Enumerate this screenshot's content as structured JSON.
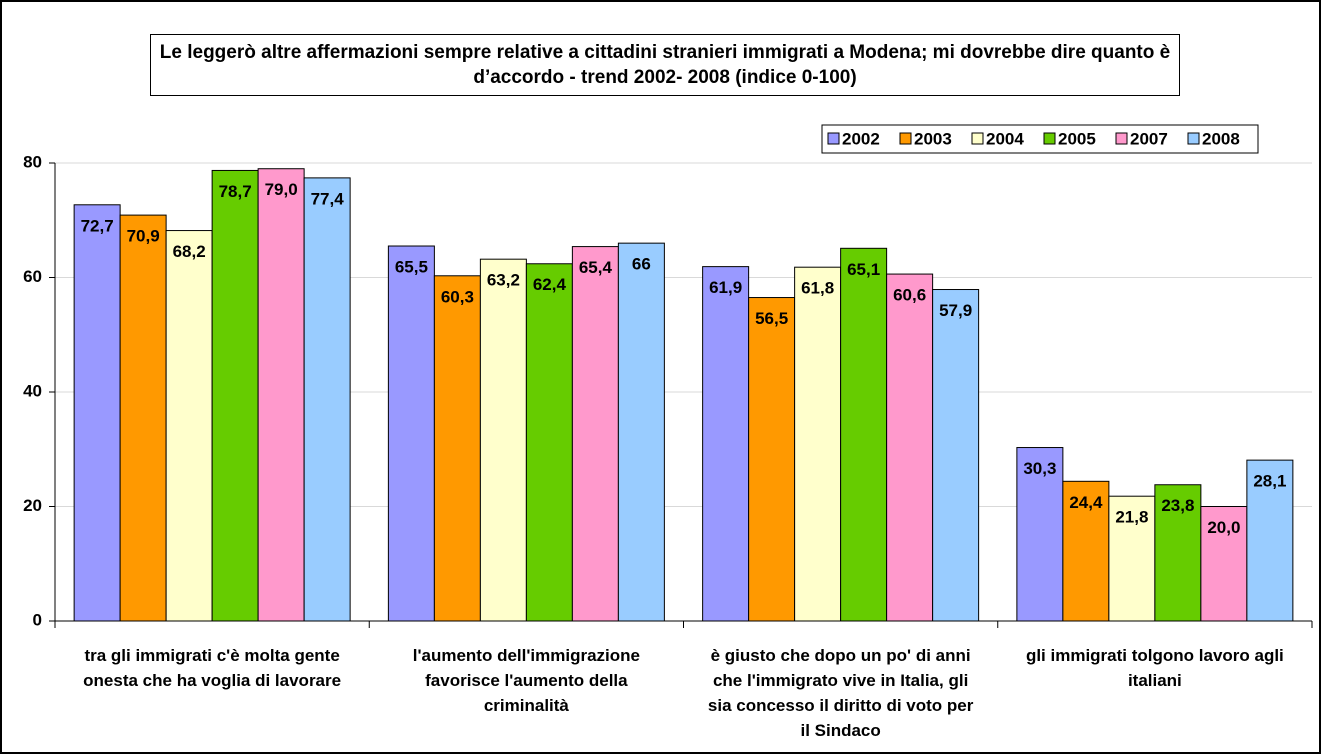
{
  "chart_data": {
    "type": "bar",
    "title": "Le leggerò altre affermazioni sempre relative a cittadini stranieri immigrati a Modena; mi dovrebbe dire quanto è d’accordo - trend 2002- 2008 (indice 0-100)",
    "categories": [
      "tra gli immigrati c'è molta gente onesta che ha voglia di lavorare",
      "l'aumento dell'immigrazione favorisce l'aumento della criminalità",
      "è giusto che dopo un po' di anni che l'immigrato vive in Italia, gli sia concesso il diritto di voto per il Sindaco",
      "gli immigrati tolgono lavoro agli italiani"
    ],
    "series": [
      {
        "name": "2002",
        "color": "#9999ff",
        "values": [
          72.7,
          65.5,
          61.9,
          30.3
        ],
        "value_labels": [
          "72,7",
          "65,5",
          "61,9",
          "30,3"
        ]
      },
      {
        "name": "2003",
        "color": "#ff9900",
        "values": [
          70.9,
          60.3,
          56.5,
          24.4
        ],
        "value_labels": [
          "70,9",
          "60,3",
          "56,5",
          "24,4"
        ]
      },
      {
        "name": "2004",
        "color": "#ffffcc",
        "values": [
          68.2,
          63.2,
          61.8,
          21.8
        ],
        "value_labels": [
          "68,2",
          "63,2",
          "61,8",
          "21,8"
        ]
      },
      {
        "name": "2005",
        "color": "#66cc00",
        "values": [
          78.7,
          62.4,
          65.1,
          23.8
        ],
        "value_labels": [
          "78,7",
          "62,4",
          "65,1",
          "23,8"
        ]
      },
      {
        "name": "2007",
        "color": "#ff99cc",
        "values": [
          79.0,
          65.4,
          60.6,
          20.0
        ],
        "value_labels": [
          "79,0",
          "65,4",
          "60,6",
          "20,0"
        ]
      },
      {
        "name": "2008",
        "color": "#99ccff",
        "values": [
          77.4,
          66,
          57.9,
          28.1
        ],
        "value_labels": [
          "77,4",
          "66",
          "57,9",
          "28,1"
        ]
      }
    ],
    "ylim": [
      0,
      80
    ],
    "yticks": [
      0,
      20,
      40,
      60,
      80
    ],
    "grid": true,
    "legend": "top-right"
  }
}
